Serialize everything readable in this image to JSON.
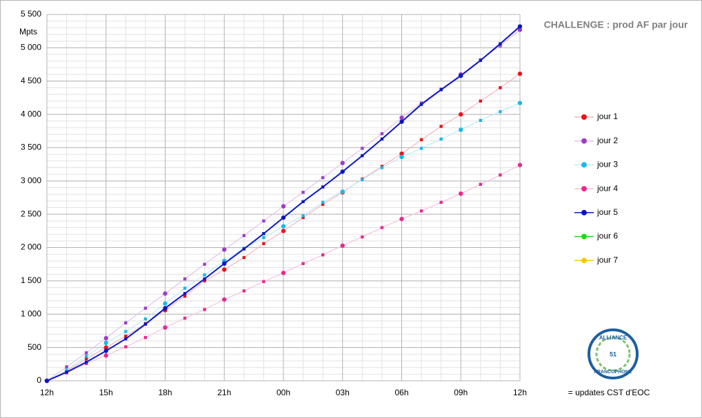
{
  "chart_data": {
    "type": "line",
    "title": "CHALLENGE : prod AF par jour",
    "y_label": "Mpts",
    "note": "= updates CST d'EOC",
    "logo": {
      "top": "ALLIANCE",
      "middle": "51",
      "bottom": "FRANCOPHONE"
    },
    "categories": [
      "12h",
      null,
      null,
      "15h",
      null,
      null,
      "18h",
      null,
      null,
      "21h",
      null,
      null,
      "00h",
      null,
      null,
      "03h",
      null,
      null,
      "06h",
      null,
      null,
      "09h",
      null,
      null,
      "12h"
    ],
    "ylim": [
      0,
      5500
    ],
    "yticks": [
      0,
      500,
      {
        "value": 1000,
        "label": "1 000"
      },
      {
        "value": 1500,
        "label": "1 500"
      },
      {
        "value": 2000,
        "label": "2 000"
      },
      {
        "value": 2500,
        "label": "2 500"
      },
      {
        "value": 3000,
        "label": "3 000"
      },
      {
        "value": 3500,
        "label": "3 500"
      },
      {
        "value": 4000,
        "label": "4 000"
      },
      {
        "value": 4500,
        "label": "4 500"
      },
      {
        "value": 5000,
        "label": "5 000"
      },
      {
        "value": 5500,
        "label": "5 500"
      }
    ],
    "grid": true,
    "legend": "right",
    "series": [
      {
        "name": "jour 1",
        "color": "#e8141b",
        "line_color": "#f6b5c0",
        "values": [
          0,
          150,
          330,
          500,
          670,
          860,
          1060,
          1270,
          1500,
          1670,
          1850,
          2060,
          2250,
          2450,
          2650,
          2830,
          3030,
          3220,
          3410,
          3620,
          3820,
          4000,
          4200,
          4400,
          4610
        ]
      },
      {
        "name": "jour 2",
        "color": "#9b3ec8",
        "line_color": "#e2c2ee",
        "values": [
          0,
          210,
          420,
          640,
          870,
          1090,
          1310,
          1530,
          1750,
          1970,
          2180,
          2400,
          2620,
          2830,
          3050,
          3270,
          3490,
          3710,
          3950,
          4170,
          4380,
          4600,
          4820,
          5030,
          5270
        ]
      },
      {
        "name": "jour 3",
        "color": "#1ab8ec",
        "line_color": "#bfe9f8",
        "values": [
          0,
          160,
          370,
          570,
          740,
          930,
          1160,
          1390,
          1590,
          1800,
          1990,
          2150,
          2320,
          2480,
          2680,
          2840,
          3020,
          3200,
          3360,
          3490,
          3630,
          3770,
          3910,
          4040,
          4170
        ]
      },
      {
        "name": "jour 4",
        "color": "#e8298f",
        "line_color": "#f7c1dc",
        "values": [
          0,
          120,
          260,
          380,
          510,
          650,
          800,
          940,
          1070,
          1220,
          1350,
          1490,
          1620,
          1760,
          1890,
          2030,
          2160,
          2300,
          2430,
          2550,
          2680,
          2810,
          2950,
          3090,
          3240
        ]
      },
      {
        "name": "jour 5",
        "color": "#0a17c4",
        "line_color": "#0a17c4",
        "values": [
          0,
          130,
          280,
          450,
          630,
          850,
          1090,
          1310,
          1530,
          1760,
          1980,
          2210,
          2450,
          2690,
          2910,
          3140,
          3380,
          3630,
          3890,
          4150,
          4370,
          4580,
          4810,
          5060,
          5320
        ]
      },
      {
        "name": "jour 6",
        "color": "#22d622",
        "line_color": "#22d622",
        "values": [
          null,
          null,
          null,
          null,
          null,
          null,
          null,
          null,
          null,
          null,
          null,
          null,
          null,
          null,
          null,
          null,
          null,
          null,
          null,
          null,
          null,
          null,
          null,
          null,
          null
        ]
      },
      {
        "name": "jour 7",
        "color": "#f5c800",
        "line_color": "#f5c800",
        "values": [
          null,
          null,
          null,
          null,
          null,
          null,
          null,
          null,
          null,
          null,
          null,
          null,
          null,
          null,
          null,
          null,
          null,
          null,
          null,
          null,
          null,
          null,
          null,
          null,
          null
        ]
      }
    ]
  }
}
